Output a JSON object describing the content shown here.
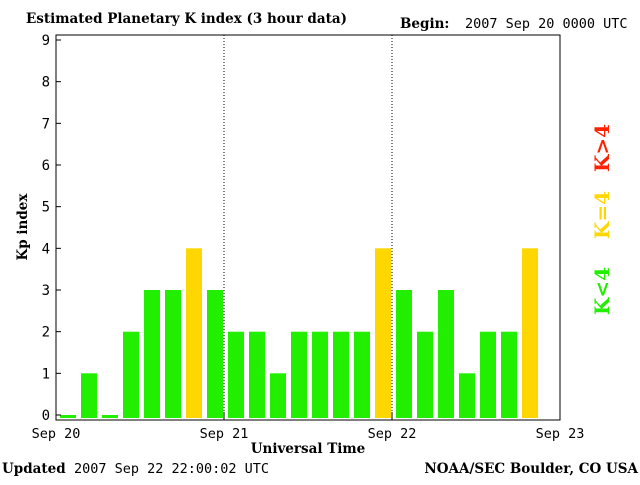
{
  "header": {
    "title": "Estimated Planetary K index (3 hour data)",
    "begin_label": "Begin:",
    "begin_value": "2007 Sep 20 0000 UTC"
  },
  "footer": {
    "updated_label": "Updated",
    "updated_value": "2007 Sep 22 22:00:02 UTC",
    "source": "NOAA/SEC Boulder, CO USA"
  },
  "legend": [
    {
      "label": "K>4",
      "color": "#ff2200"
    },
    {
      "label": "K=4",
      "color": "#ffd700"
    },
    {
      "label": "K<4",
      "color": "#22ee00"
    }
  ],
  "chart_data": {
    "type": "bar",
    "title": "Estimated Planetary K index (3 hour data)",
    "xlabel": "Universal Time",
    "ylabel": "Kp index",
    "ylim": [
      0,
      9
    ],
    "yticks": [
      0,
      1,
      2,
      3,
      4,
      5,
      6,
      7,
      8,
      9
    ],
    "day_labels": [
      "Sep 20",
      "Sep 21",
      "Sep 22",
      "Sep 23"
    ],
    "bars_per_day": 8,
    "colors": {
      "below": "#22ee00",
      "equal": "#ffd700",
      "above": "#ff2200"
    },
    "values": [
      0,
      1,
      0,
      2,
      3,
      3,
      4,
      3,
      2,
      2,
      1,
      2,
      2,
      2,
      2,
      4,
      3,
      2,
      3,
      1,
      2,
      2,
      4
    ]
  }
}
